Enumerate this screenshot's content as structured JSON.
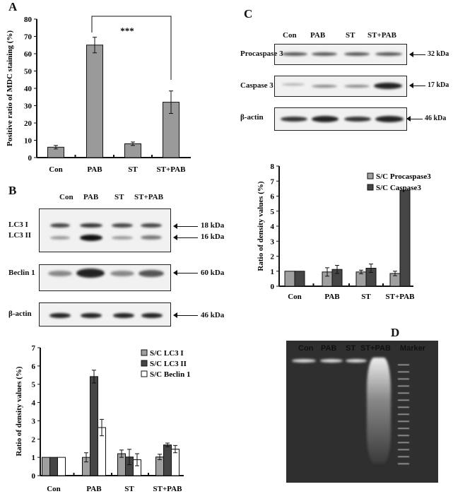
{
  "panels": {
    "a": "A",
    "b": "B",
    "c": "C",
    "d": "D"
  },
  "lanes": [
    "Con",
    "PAB",
    "ST",
    "ST+PAB"
  ],
  "panel_b": {
    "rows": [
      "LC3 I",
      "LC3 II",
      "Beclin 1",
      "β-actin"
    ],
    "sizes": [
      "18 kDa",
      "16 kDa",
      "60 kDa",
      "46 kDa"
    ]
  },
  "panel_c": {
    "rows": [
      "Procaspase 3",
      "Caspase 3",
      "β-actin"
    ],
    "sizes": [
      "32 kDa",
      "17 kDa",
      "46 kDa"
    ]
  },
  "panel_d": {
    "lanes": [
      "Con",
      "PAB",
      "ST",
      "ST+PAB",
      "Marker"
    ]
  },
  "chart_data": [
    {
      "type": "bar",
      "ylabel": "Positive ratio of MDC staining (%)",
      "categories": [
        "Con",
        "PAB",
        "ST",
        "ST+PAB"
      ],
      "ylim": [
        0,
        80
      ],
      "yticks": [
        0,
        10,
        20,
        30,
        40,
        50,
        60,
        70,
        80
      ],
      "series": [
        {
          "values": [
            6,
            65,
            8,
            32
          ],
          "errors": [
            1,
            4.5,
            1,
            6.5
          ],
          "color": "#9a9a9a"
        }
      ],
      "annotation": "***"
    },
    {
      "type": "bar",
      "ylabel": "Ratio of density values (%)",
      "categories": [
        "Con",
        "PAB",
        "ST",
        "ST+PAB"
      ],
      "ylim": [
        0,
        7
      ],
      "yticks": [
        0,
        1,
        2,
        3,
        4,
        5,
        6,
        7
      ],
      "legend": "top-right",
      "series": [
        {
          "name": "S/C LC3 I",
          "values": [
            1,
            1,
            1.2,
            1.02
          ],
          "errors": [
            0,
            0.25,
            0.2,
            0.15
          ],
          "color": "#a0a0a0"
        },
        {
          "name": "S/C LC3 II",
          "values": [
            1,
            5.42,
            1.02,
            1.68
          ],
          "errors": [
            0,
            0.35,
            0.42,
            0.1
          ],
          "color": "#454545"
        },
        {
          "name": "S/C Beclin 1",
          "values": [
            1,
            2.63,
            0.87,
            1.45
          ],
          "errors": [
            0,
            0.45,
            0.33,
            0.2
          ],
          "color": "#ffffff"
        }
      ]
    },
    {
      "type": "bar",
      "ylabel": "Ratio of density values (%)",
      "categories": [
        "Con",
        "PAB",
        "ST",
        "ST+PAB"
      ],
      "ylim": [
        0,
        8
      ],
      "yticks": [
        0,
        1,
        2,
        3,
        4,
        5,
        6,
        7,
        8
      ],
      "legend": "top-right",
      "series": [
        {
          "name": "S/C Procaspase3",
          "values": [
            1,
            0.95,
            0.95,
            0.85
          ],
          "errors": [
            0,
            0.28,
            0.12,
            0.15
          ],
          "color": "#a0a0a0"
        },
        {
          "name": "S/C Caspase3",
          "values": [
            1,
            1.12,
            1.2,
            6.4
          ],
          "errors": [
            0,
            0.27,
            0.28,
            0
          ],
          "color": "#454545"
        }
      ]
    }
  ]
}
